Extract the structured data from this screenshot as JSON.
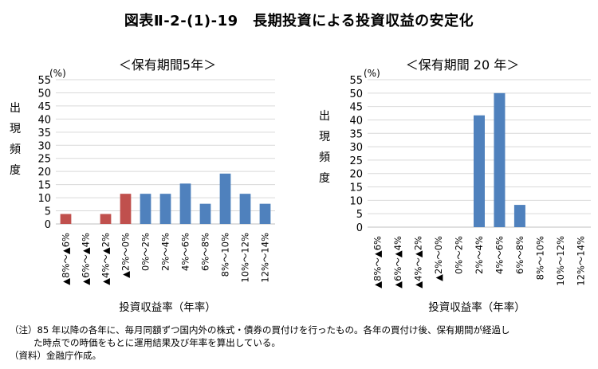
{
  "title": "図表Ⅱ-2-(1)-19　長期投資による投資収益の安定化",
  "chart_data": [
    {
      "type": "bar",
      "title": "＜保有期間5年＞",
      "ylabel": "出現頻度",
      "yunit": "(%)",
      "xlabel": "投資収益率（年率）",
      "ylim": [
        0,
        55
      ],
      "yticks": [
        0,
        5,
        10,
        15,
        20,
        25,
        30,
        35,
        40,
        45,
        50,
        55
      ],
      "grid": true,
      "categories": [
        "▲8%～▲6%",
        "▲6%～▲4%",
        "▲4%～▲2%",
        "▲2%～0%",
        "0%～2%",
        "2%～4%",
        "4%～6%",
        "6%～8%",
        "8%～10%",
        "10%～12%",
        "12%～14%"
      ],
      "values": [
        3.8,
        0,
        3.8,
        11.5,
        11.5,
        11.5,
        15.4,
        7.7,
        19.2,
        11.5,
        7.7
      ],
      "colors": [
        "#c0504d",
        "#c0504d",
        "#c0504d",
        "#c0504d",
        "#4f81bd",
        "#4f81bd",
        "#4f81bd",
        "#4f81bd",
        "#4f81bd",
        "#4f81bd",
        "#4f81bd"
      ]
    },
    {
      "type": "bar",
      "title": "＜保有期間 20 年＞",
      "ylabel": "出現頻度",
      "yunit": "(%)",
      "xlabel": "投資収益率（年率）",
      "ylim": [
        0,
        55
      ],
      "yticks": [
        0,
        5,
        10,
        15,
        20,
        25,
        30,
        35,
        40,
        45,
        50,
        55
      ],
      "grid": true,
      "categories": [
        "▲8%～▲6%",
        "▲6%～▲4%",
        "▲4%～▲2%",
        "▲2%～0%",
        "0%～2%",
        "2%～4%",
        "4%～6%",
        "6%～8%",
        "8%～10%",
        "10%～12%",
        "12%～14%"
      ],
      "values": [
        0,
        0,
        0,
        0,
        0,
        41.7,
        50.0,
        8.3,
        0,
        0,
        0
      ],
      "colors": [
        "#4f81bd",
        "#4f81bd",
        "#4f81bd",
        "#4f81bd",
        "#4f81bd",
        "#4f81bd",
        "#4f81bd",
        "#4f81bd",
        "#4f81bd",
        "#4f81bd",
        "#4f81bd"
      ]
    }
  ],
  "notes": {
    "line1": "（注）85 年以降の各年に、毎月同額ずつ国内外の株式・債券の買付けを行ったもの。各年の買付け後、保有期間が経過し",
    "line2": "た時点での時価をもとに運用結果及び年率を算出している。",
    "line3": "（資料）金融庁作成。"
  }
}
